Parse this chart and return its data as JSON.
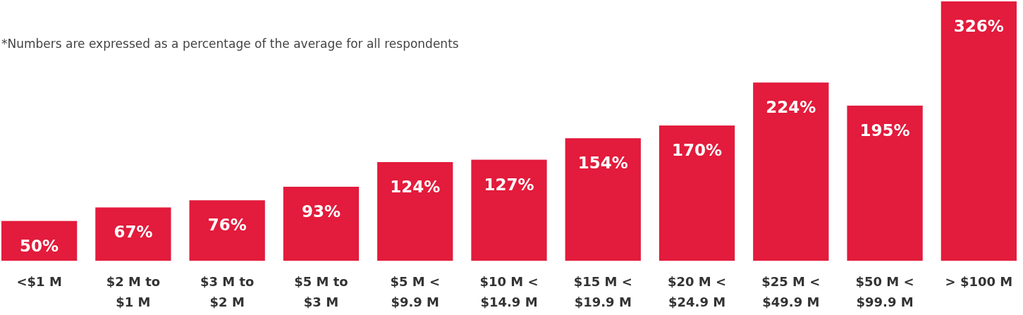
{
  "chart_data": {
    "type": "bar",
    "categories": [
      "<$1 M",
      "$2 M to\n$1 M",
      "$3 M to\n$2 M",
      "$5 M to\n$3 M",
      "$5 M <\n$9.9 M",
      "$10 M <\n$14.9 M",
      "$15 M <\n$19.9 M",
      "$20 M <\n$24.9 M",
      "$25 M <\n$49.9 M",
      "$50 M <\n$99.9 M",
      "> $100 M"
    ],
    "values": [
      50,
      67,
      76,
      93,
      124,
      127,
      154,
      170,
      224,
      195,
      326
    ],
    "value_labels": [
      "50%",
      "67%",
      "76%",
      "93%",
      "124%",
      "127%",
      "154%",
      "170%",
      "224%",
      "195%",
      "326%"
    ],
    "color": "#e31b3c",
    "annotations": [
      "*Numbers are expressed as a percentage of the average for all respondents"
    ]
  }
}
